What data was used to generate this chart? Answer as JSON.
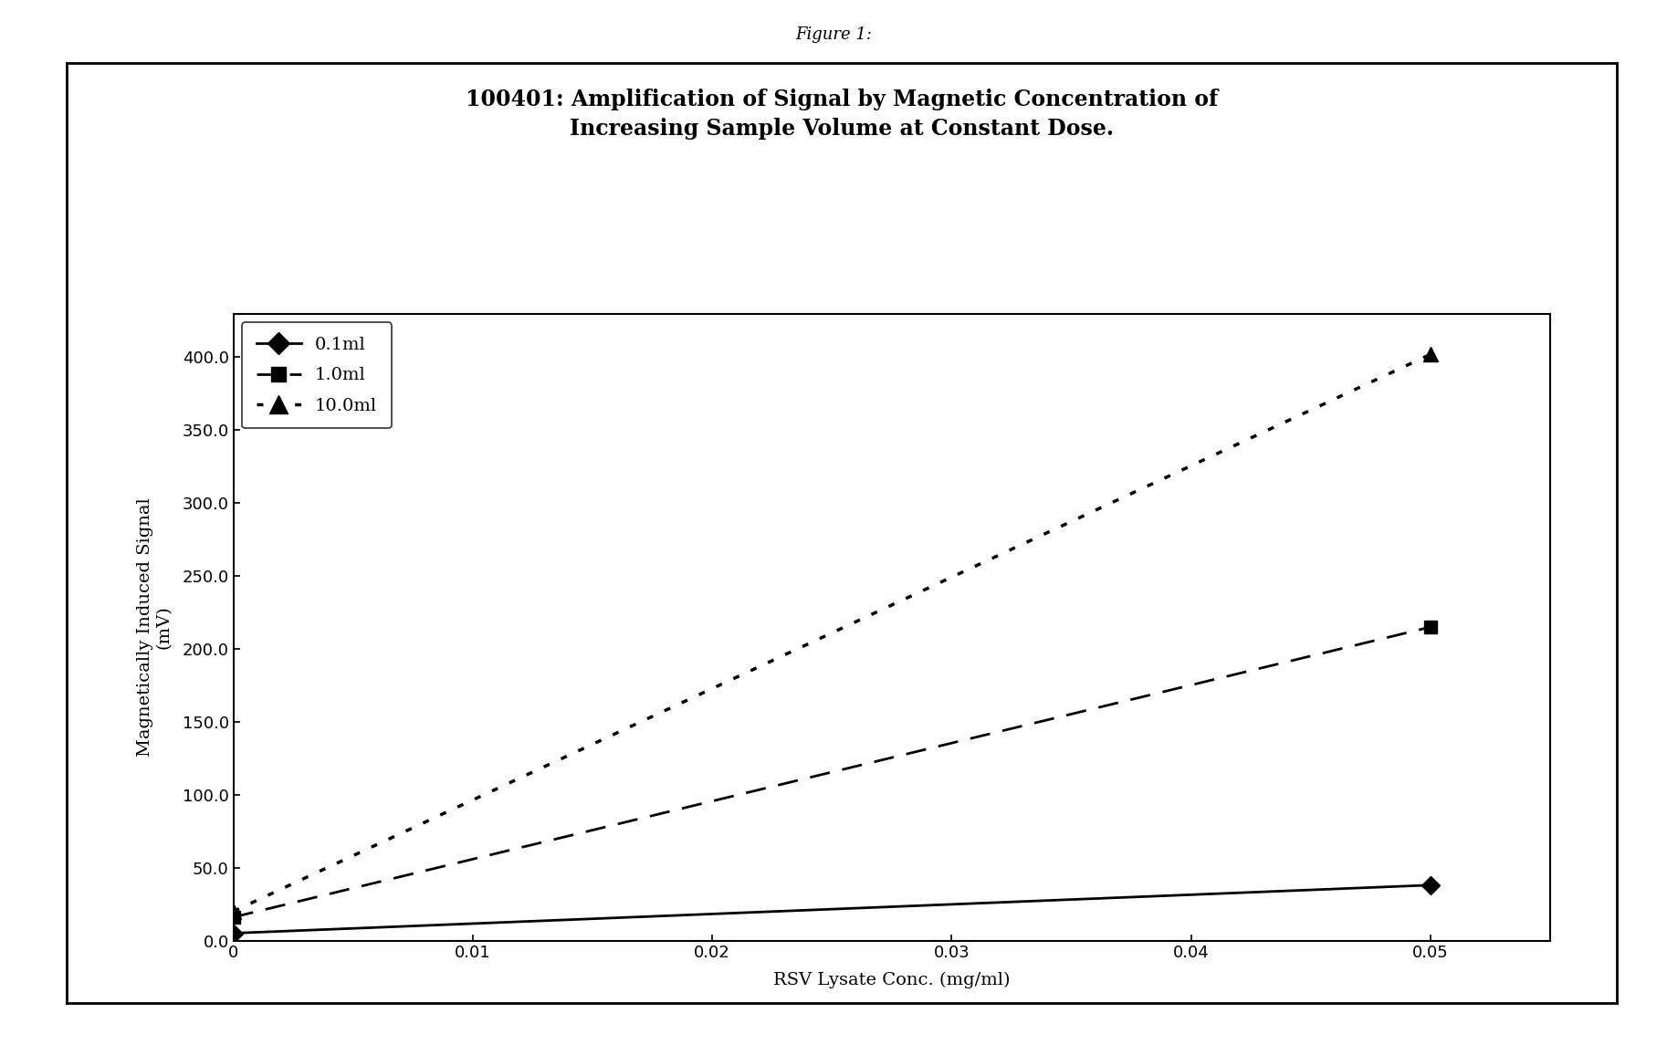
{
  "title": "100401: Amplification of Signal by Magnetic Concentration of\nIncreasing Sample Volume at Constant Dose.",
  "suptitle": "Figure 1:",
  "xlabel": "RSV Lysate Conc. (mg/ml)",
  "ylabel": "Magnetically Induced Signal\n(mV)",
  "xlim": [
    0,
    0.055
  ],
  "ylim": [
    0,
    430
  ],
  "xticks": [
    0,
    0.01,
    0.02,
    0.03,
    0.04,
    0.05
  ],
  "yticks": [
    0.0,
    50.0,
    100.0,
    150.0,
    200.0,
    250.0,
    300.0,
    350.0,
    400.0
  ],
  "series": [
    {
      "label": "0.1ml",
      "x": [
        0,
        0.05
      ],
      "y": [
        5,
        38
      ],
      "color": "black",
      "linestyle": "solid",
      "marker": "D",
      "linewidth": 2.0,
      "markersize": 10
    },
    {
      "label": "1.0ml",
      "x": [
        0,
        0.05
      ],
      "y": [
        16,
        215
      ],
      "color": "black",
      "linestyle": "dashed",
      "marker": "s",
      "linewidth": 2.0,
      "markersize": 10,
      "dashes": [
        8,
        5
      ]
    },
    {
      "label": "10.0ml",
      "x": [
        0,
        0.05
      ],
      "y": [
        20,
        402
      ],
      "color": "black",
      "linestyle": "dotted",
      "marker": "^",
      "linewidth": 2.5,
      "markersize": 12,
      "dashes": [
        2,
        4
      ]
    }
  ],
  "legend_loc": "upper left",
  "background_color": "#ffffff",
  "title_fontsize": 17,
  "axis_label_fontsize": 14,
  "tick_fontsize": 13,
  "legend_fontsize": 14,
  "suptitle_fontsize": 13
}
